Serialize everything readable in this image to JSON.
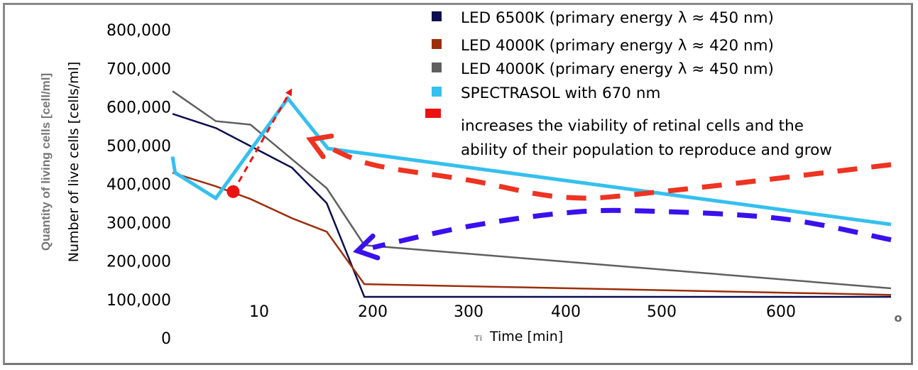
{
  "chart_data": {
    "type": "line",
    "title": "",
    "xlabel": "Time [min]",
    "xlabel_prefix_glyph": "Ti",
    "ylabel": "Number of live cells [cells/ml]",
    "ylabel_secondary": "Quantity of living cells [cell/ml]",
    "ylim": [
      0,
      800000
    ],
    "yticks": [
      "0",
      "100,000",
      "200,000",
      "300,000",
      "400,000",
      "500,000",
      "600,000",
      "700,000",
      "800,000"
    ],
    "ytick_values": [
      0,
      100000,
      200000,
      300000,
      400000,
      500000,
      600000,
      700000,
      800000
    ],
    "xticks": [
      "10",
      "200",
      "300",
      "400",
      "500",
      "600",
      "o"
    ],
    "xtick_values": [
      10,
      200,
      300,
      400,
      500,
      600,
      700
    ],
    "xlim": [
      0,
      700
    ],
    "grid": false,
    "legend_position": "top-right",
    "series": [
      {
        "name": "LED 6500K (primary energy λ ≈ 450 nm)",
        "color": "#0d0f4f",
        "points": [
          [
            0,
            582000
          ],
          [
            5,
            545000
          ],
          [
            65,
            442000
          ],
          [
            123,
            350000
          ],
          [
            186,
            107000
          ],
          [
            700,
            107000
          ]
        ]
      },
      {
        "name": "LED 4000K (primary energy λ ≈ 420 nm)",
        "color": "#9c2e0c",
        "points": [
          [
            0,
            429000
          ],
          [
            5,
            394000
          ],
          [
            9,
            361000
          ],
          [
            65,
            311000
          ],
          [
            123,
            276000
          ],
          [
            186,
            140000
          ],
          [
            700,
            112000
          ]
        ]
      },
      {
        "name": "LED 4000K (primary energy λ ≈ 450 nm)",
        "color": "#5f5f5f",
        "points": [
          [
            0,
            641000
          ],
          [
            5,
            563000
          ],
          [
            9,
            554000
          ],
          [
            123,
            389000
          ],
          [
            186,
            241000
          ],
          [
            700,
            129000
          ]
        ]
      },
      {
        "name": "SPECTRASOL with 670 nm",
        "color": "#35c0ee",
        "points": [
          [
            0,
            471000
          ],
          [
            0.3,
            429000
          ],
          [
            5,
            363000
          ],
          [
            58,
            622000
          ],
          [
            125,
            492000
          ],
          [
            700,
            295000
          ]
        ]
      }
    ],
    "annotations": [
      {
        "type": "legend-entry",
        "color": "#ee1111",
        "text_lines": [
          "increases the viability of retinal cells and the",
          "ability of their population to reproduce and grow"
        ]
      },
      {
        "type": "dashed-arrow",
        "color": "#ee1111",
        "description": "thin dashed red arrow from a red dot on the LED 4000K (420 nm) line up to above the SPECTRASOL peak",
        "from": [
          7,
          380000
        ],
        "to": [
          62,
          640000
        ]
      },
      {
        "type": "dashed-curve-arrow",
        "color": "#ee3322",
        "description": "thick dashed red curve from the right edge bending down and pointing left to the SPECTRASOL knee",
        "points": [
          [
            700,
            450000
          ],
          [
            500,
            380000
          ],
          [
            400,
            365000
          ],
          [
            300,
            410000
          ],
          [
            200,
            450000
          ],
          [
            120,
            500000
          ]
        ]
      },
      {
        "type": "dashed-curve-arrow",
        "color": "#3a10ee",
        "description": "thick dashed blue curve from the right edge arching up and pointing left to the LED 4000K (450 nm) knee",
        "points": [
          [
            700,
            255000
          ],
          [
            600,
            310000
          ],
          [
            480,
            330000
          ],
          [
            400,
            325000
          ],
          [
            300,
            290000
          ],
          [
            200,
            235000
          ]
        ]
      }
    ]
  }
}
